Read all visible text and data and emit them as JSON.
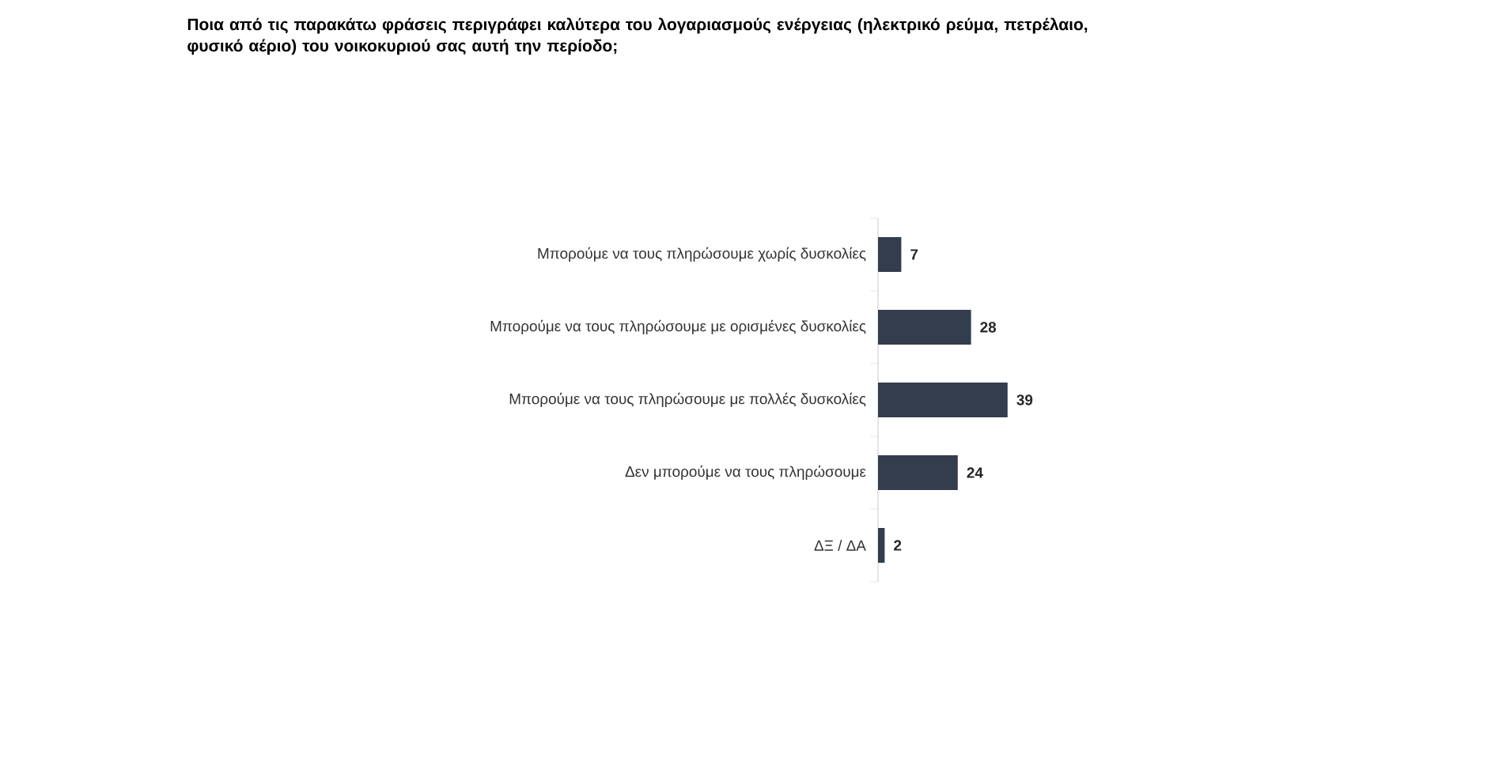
{
  "chart_data": {
    "type": "bar",
    "orientation": "horizontal",
    "title": "Ποια από τις παρακάτω φράσεις περιγράφει καλύτερα του λογαριασμούς ενέργειας (ηλεκτρικό ρεύμα, πετρέλαιο, φυσικό αέριο) του νοικοκυριού σας αυτή την περίοδο;",
    "categories": [
      "Μπορούμε να τους πληρώσουμε χωρίς δυσκολίες",
      "Μπορούμε να τους πληρώσουμε με ορισμένες δυσκολίες",
      "Μπορούμε να τους πληρώσουμε με πολλές δυσκολίες",
      "Δεν μπορούμε να τους πληρώσουμε",
      "ΔΞ / ΔΑ"
    ],
    "values": [
      7,
      28,
      39,
      24,
      2
    ],
    "color": "#343d4e",
    "data_labels": true,
    "grid": false
  }
}
